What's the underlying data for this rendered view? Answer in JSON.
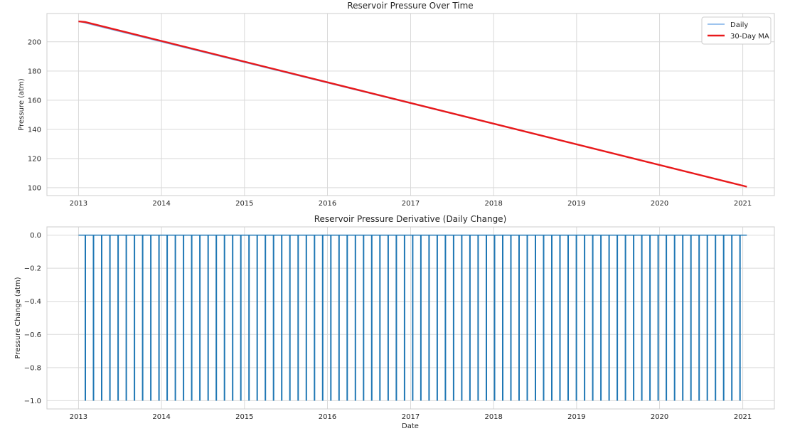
{
  "chart_data": [
    {
      "type": "line",
      "title": "Reservoir Pressure Over Time",
      "xlabel": "",
      "ylabel": "Pressure (atm)",
      "x_ticks": [
        "2013",
        "2014",
        "2015",
        "2016",
        "2017",
        "2018",
        "2019",
        "2020",
        "2021"
      ],
      "y_ticks": [
        "100",
        "120",
        "140",
        "160",
        "180",
        "200"
      ],
      "xlim": [
        "2012-08-15",
        "2021-05-20"
      ],
      "ylim": [
        94.6,
        219.4
      ],
      "grid": true,
      "legend_position": "top-right",
      "series": [
        {
          "name": "Daily",
          "color": "#7eb0e8",
          "points": [
            [
              "2013-01-01",
              214.0
            ],
            [
              "2021-01-19",
              100.7
            ]
          ]
        },
        {
          "name": "30-Day MA",
          "color": "#e8191b",
          "points": [
            [
              "2013-01-01",
              214.0
            ],
            [
              "2013-01-30",
              213.6
            ],
            [
              "2021-01-19",
              100.7
            ]
          ]
        }
      ]
    },
    {
      "type": "line",
      "title": "Reservoir Pressure Derivative (Daily Change)",
      "xlabel": "Date",
      "ylabel": "Pressure Change (atm)",
      "x_ticks": [
        "2013",
        "2014",
        "2015",
        "2016",
        "2017",
        "2018",
        "2019",
        "2020",
        "2021"
      ],
      "y_ticks": [
        "−1.0",
        "−0.8",
        "−0.6",
        "−0.4",
        "−0.2",
        "0.0"
      ],
      "xlim": [
        "2012-08-15",
        "2021-05-20"
      ],
      "ylim": [
        -1.05,
        0.05
      ],
      "grid": true,
      "series": [
        {
          "name": "",
          "color": "#1f77b4",
          "baseline": 0.0,
          "drop_value": -1.0,
          "first_date": "2013-01-01",
          "last_date": "2021-01-19",
          "drop_interval_days": 36,
          "first_drop": "2013-01-31"
        }
      ]
    }
  ]
}
